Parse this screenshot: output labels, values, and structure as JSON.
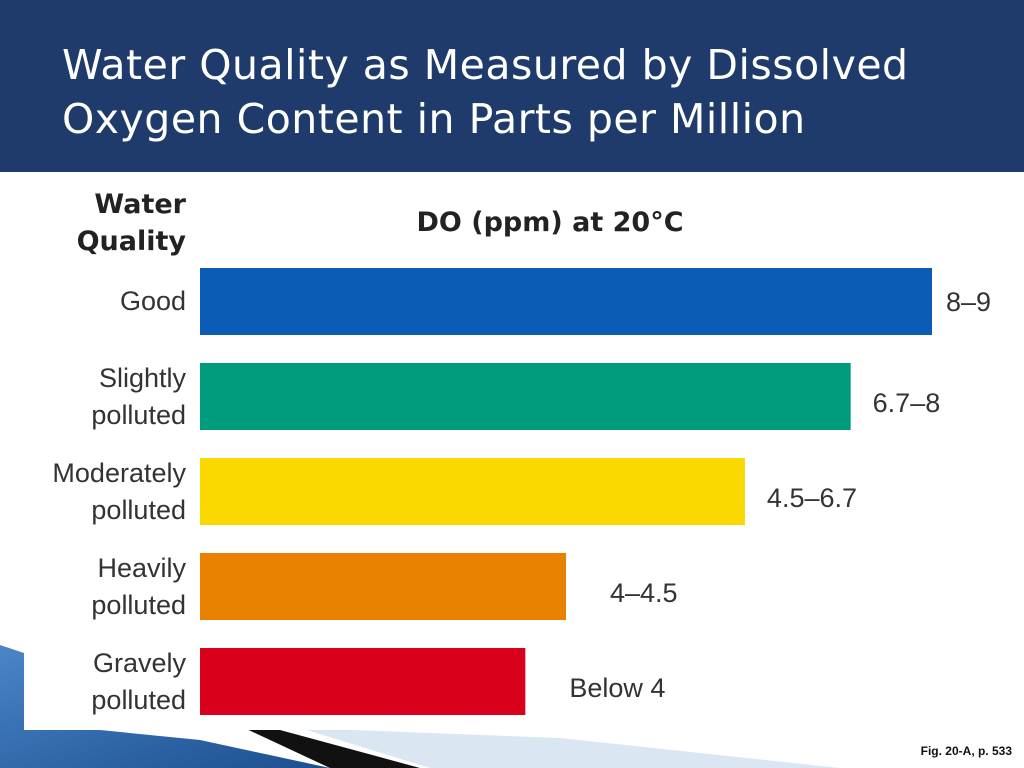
{
  "slide": {
    "title_line1": "Water Quality as Measured by Dissolved",
    "title_line2": "Oxygen Content in Parts per Million",
    "caption": "Fig. 20-A, p. 533",
    "header_color": "#1f3b6b"
  },
  "chart_data": {
    "type": "bar",
    "orientation": "horizontal",
    "title": "DO (ppm) at 20°C",
    "category_axis_title": "Water Quality",
    "categories": [
      "Good",
      "Slightly\npolluted",
      "Moderately\npolluted",
      "Heavily\npolluted",
      "Gravely\npolluted"
    ],
    "value_labels": [
      "8–9",
      "6.7–8",
      "4.5–6.7",
      "4–4.5",
      "Below 4"
    ],
    "values": [
      9,
      8,
      6.7,
      4.5,
      4
    ],
    "colors": [
      "#0a5cb5",
      "#009b7d",
      "#fbd800",
      "#e88100",
      "#d8001a"
    ],
    "xlim": [
      0,
      9
    ],
    "grid": false,
    "legend": "none"
  }
}
